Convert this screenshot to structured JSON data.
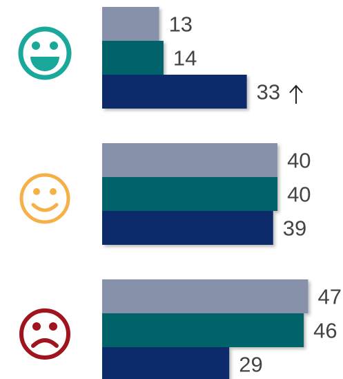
{
  "chart_data": {
    "type": "bar",
    "orientation": "horizontal",
    "categories": [
      null,
      null,
      null
    ],
    "series": [
      {
        "color": "#8791aa",
        "values": [
          13,
          40,
          47
        ]
      },
      {
        "color": "#02646a",
        "values": [
          14,
          40,
          46
        ]
      },
      {
        "color": "#0f2a6b",
        "values": [
          33,
          39,
          29
        ]
      }
    ],
    "xlim": [
      0,
      54
    ]
  }
}
